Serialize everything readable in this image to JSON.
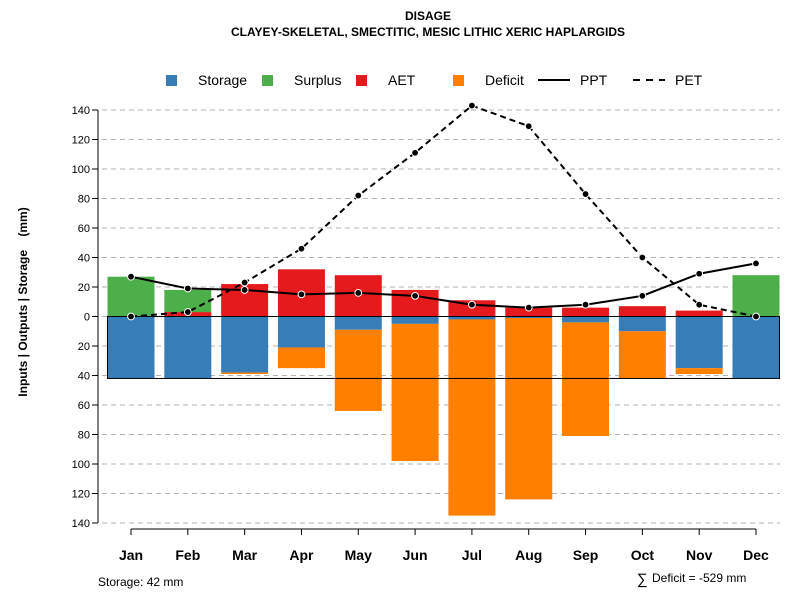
{
  "chart_data": {
    "type": "bar",
    "title": "DISAGE",
    "subtitle": "CLAYEY-SKELETAL, SMECTITIC, MESIC LITHIC XERIC HAPLARGIDS",
    "ylabel": "Inputs | Outputs | Storage    (mm)",
    "ylim": [
      -140,
      140
    ],
    "ytick_values": [
      140,
      120,
      100,
      80,
      60,
      40,
      20,
      0,
      -20,
      -40,
      -60,
      -80,
      -100,
      -120,
      -140
    ],
    "ytick_labels": [
      "140",
      "120",
      "100",
      "80",
      "60",
      "40",
      "20",
      "0",
      "20",
      "40",
      "60",
      "80",
      "100",
      "120",
      "140"
    ],
    "grid": true,
    "legend_position": "top",
    "categories": [
      "Jan",
      "Feb",
      "Mar",
      "Apr",
      "May",
      "Jun",
      "Jul",
      "Aug",
      "Sep",
      "Oct",
      "Nov",
      "Dec"
    ],
    "legend": [
      {
        "label": "Storage",
        "kind": "box",
        "color": "#377EB8"
      },
      {
        "label": "Surplus",
        "kind": "box",
        "color": "#4DAF4A"
      },
      {
        "label": "AET",
        "kind": "box",
        "color": "#E41A1C"
      },
      {
        "label": "Deficit",
        "kind": "box",
        "color": "#FF7F00"
      },
      {
        "label": "PPT",
        "kind": "solid",
        "color": "#000000"
      },
      {
        "label": "PET",
        "kind": "dashed",
        "color": "#000000"
      }
    ],
    "series": [
      {
        "name": "Surplus",
        "color": "#4DAF4A",
        "values": [
          27,
          15,
          0,
          0,
          0,
          0,
          0,
          0,
          0,
          0,
          0,
          28
        ]
      },
      {
        "name": "AET",
        "color": "#E41A1C",
        "values": [
          0,
          3,
          22,
          32,
          28,
          18,
          11,
          6,
          6,
          7,
          4,
          0
        ]
      },
      {
        "name": "Storage",
        "color": "#377EB8",
        "values": [
          42,
          42,
          38,
          21,
          9,
          5,
          2,
          1,
          4,
          10,
          35,
          42
        ]
      },
      {
        "name": "Deficit",
        "color": "#FF7F00",
        "values": [
          0,
          0,
          1,
          14,
          55,
          93,
          133,
          123,
          77,
          32,
          4,
          0
        ]
      },
      {
        "name": "PPT",
        "color": "#000000",
        "values": [
          27,
          19,
          18,
          15,
          16,
          14,
          8,
          6,
          8,
          14,
          29,
          36
        ]
      },
      {
        "name": "PET",
        "color": "#000000",
        "values": [
          0,
          3,
          23,
          46,
          82,
          111,
          143,
          129,
          83,
          40,
          8,
          0
        ]
      }
    ],
    "storage_capacity": 42,
    "annotations": {
      "storage": "Storage: 42 mm",
      "deficit_symbol": "∑",
      "deficit": "Deficit = -529 mm"
    }
  }
}
